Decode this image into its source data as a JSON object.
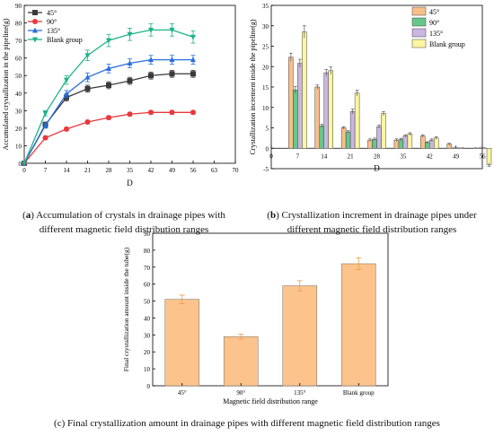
{
  "chart_data": [
    {
      "type": "line",
      "panel_label": "a",
      "caption": "Accumulation of crystals in drainage pipes with different magnetic field distribution ranges",
      "xlabel": "D",
      "ylabel": "Accumulated crystallization in the pipeline(g)",
      "xlim": [
        0,
        70
      ],
      "ylim": [
        0,
        90
      ],
      "x_ticks": [
        0,
        7,
        14,
        21,
        28,
        35,
        42,
        49,
        56,
        63,
        70
      ],
      "y_ticks": [
        0,
        10,
        20,
        30,
        40,
        50,
        60,
        70,
        80,
        90
      ],
      "legend_position": "top-left",
      "x": [
        0,
        7,
        14,
        21,
        28,
        35,
        42,
        49,
        56
      ],
      "series": [
        {
          "name": "45°",
          "color": "#3a3a3a",
          "marker": "square",
          "values": [
            0,
            22,
            37.5,
            42.5,
            44.5,
            47,
            50,
            51,
            51
          ],
          "errors": [
            0,
            1.5,
            2,
            2,
            2,
            2,
            2,
            2,
            2
          ]
        },
        {
          "name": "90°",
          "color": "#e8393d",
          "marker": "circle",
          "values": [
            0,
            14.5,
            19.5,
            23.5,
            26,
            28,
            29,
            29,
            29
          ],
          "errors": [
            0,
            1,
            1,
            1,
            1,
            1,
            1,
            1,
            1
          ]
        },
        {
          "name": "135°",
          "color": "#2a6fdb",
          "marker": "triangle-up",
          "values": [
            0,
            21.5,
            39.5,
            49,
            54,
            57,
            59,
            59,
            59
          ],
          "errors": [
            0,
            1.5,
            2,
            2.5,
            2.5,
            2.5,
            2.5,
            2.5,
            2.5
          ]
        },
        {
          "name": "Blank group",
          "color": "#1db38a",
          "marker": "triangle-down",
          "values": [
            0,
            28.5,
            47.5,
            61.5,
            70,
            73.5,
            76,
            76,
            72
          ],
          "errors": [
            0,
            1.5,
            2.5,
            3,
            3.5,
            3.5,
            3.5,
            3.5,
            3.5
          ]
        }
      ]
    },
    {
      "type": "bar",
      "panel_label": "b",
      "caption": "Crystallization increment in drainage pipes under different magnetic field distribution ranges",
      "xlabel": "D",
      "ylabel": "Crystallization increment inside the pipeline(g)",
      "xlim": [
        0,
        56
      ],
      "ylim": [
        -5,
        35
      ],
      "x_ticks": [
        0,
        7,
        14,
        21,
        28,
        35,
        42,
        49,
        56
      ],
      "y_ticks": [
        -5,
        0,
        5,
        10,
        15,
        20,
        25,
        30,
        35
      ],
      "legend_position": "top-right",
      "categories": [
        7,
        14,
        21,
        28,
        35,
        42,
        49,
        56
      ],
      "series": [
        {
          "name": "45°",
          "color": "#f9bf8a",
          "values": [
            22.3,
            15,
            5,
            2,
            2,
            3,
            1,
            0
          ],
          "errors": [
            1,
            0.5,
            0.3,
            0.3,
            0.3,
            0.3,
            0.2,
            0.1
          ]
        },
        {
          "name": "90°",
          "color": "#66c78a",
          "values": [
            14.3,
            5.5,
            4,
            2.2,
            2.1,
            1.4,
            0,
            0
          ],
          "errors": [
            0.8,
            0.4,
            0.3,
            0.3,
            0.3,
            0.2,
            0.1,
            0.1
          ]
        },
        {
          "name": "135°",
          "color": "#c9b6e2",
          "values": [
            20.8,
            18.5,
            9,
            5.3,
            3,
            2,
            0,
            0
          ],
          "errors": [
            1,
            0.8,
            0.6,
            0.4,
            0.3,
            0.3,
            0.1,
            0.1
          ]
        },
        {
          "name": "Blank group",
          "color": "#fbf6a0",
          "values": [
            28.5,
            19,
            13.5,
            8.5,
            3.5,
            2.5,
            0,
            -4
          ],
          "errors": [
            1.5,
            0.9,
            0.7,
            0.5,
            0.3,
            0.3,
            0.1,
            0.4
          ]
        }
      ]
    },
    {
      "type": "bar",
      "panel_label": "c",
      "caption": "Final crystallization amount in drainage pipes with different magnetic field distribution ranges",
      "xlabel": "Magnetic field distribution range",
      "ylabel": "Final crystallization amount inside the tube(g)",
      "ylim": [
        0,
        90
      ],
      "y_ticks": [
        0,
        10,
        20,
        30,
        40,
        50,
        60,
        70,
        80,
        90
      ],
      "categories": [
        "45°",
        "90°",
        "135°",
        "Blank group"
      ],
      "color": "#fcc48c",
      "values": [
        51,
        29,
        59,
        72
      ],
      "errors": [
        2.5,
        1.5,
        3,
        3.5
      ]
    }
  ]
}
